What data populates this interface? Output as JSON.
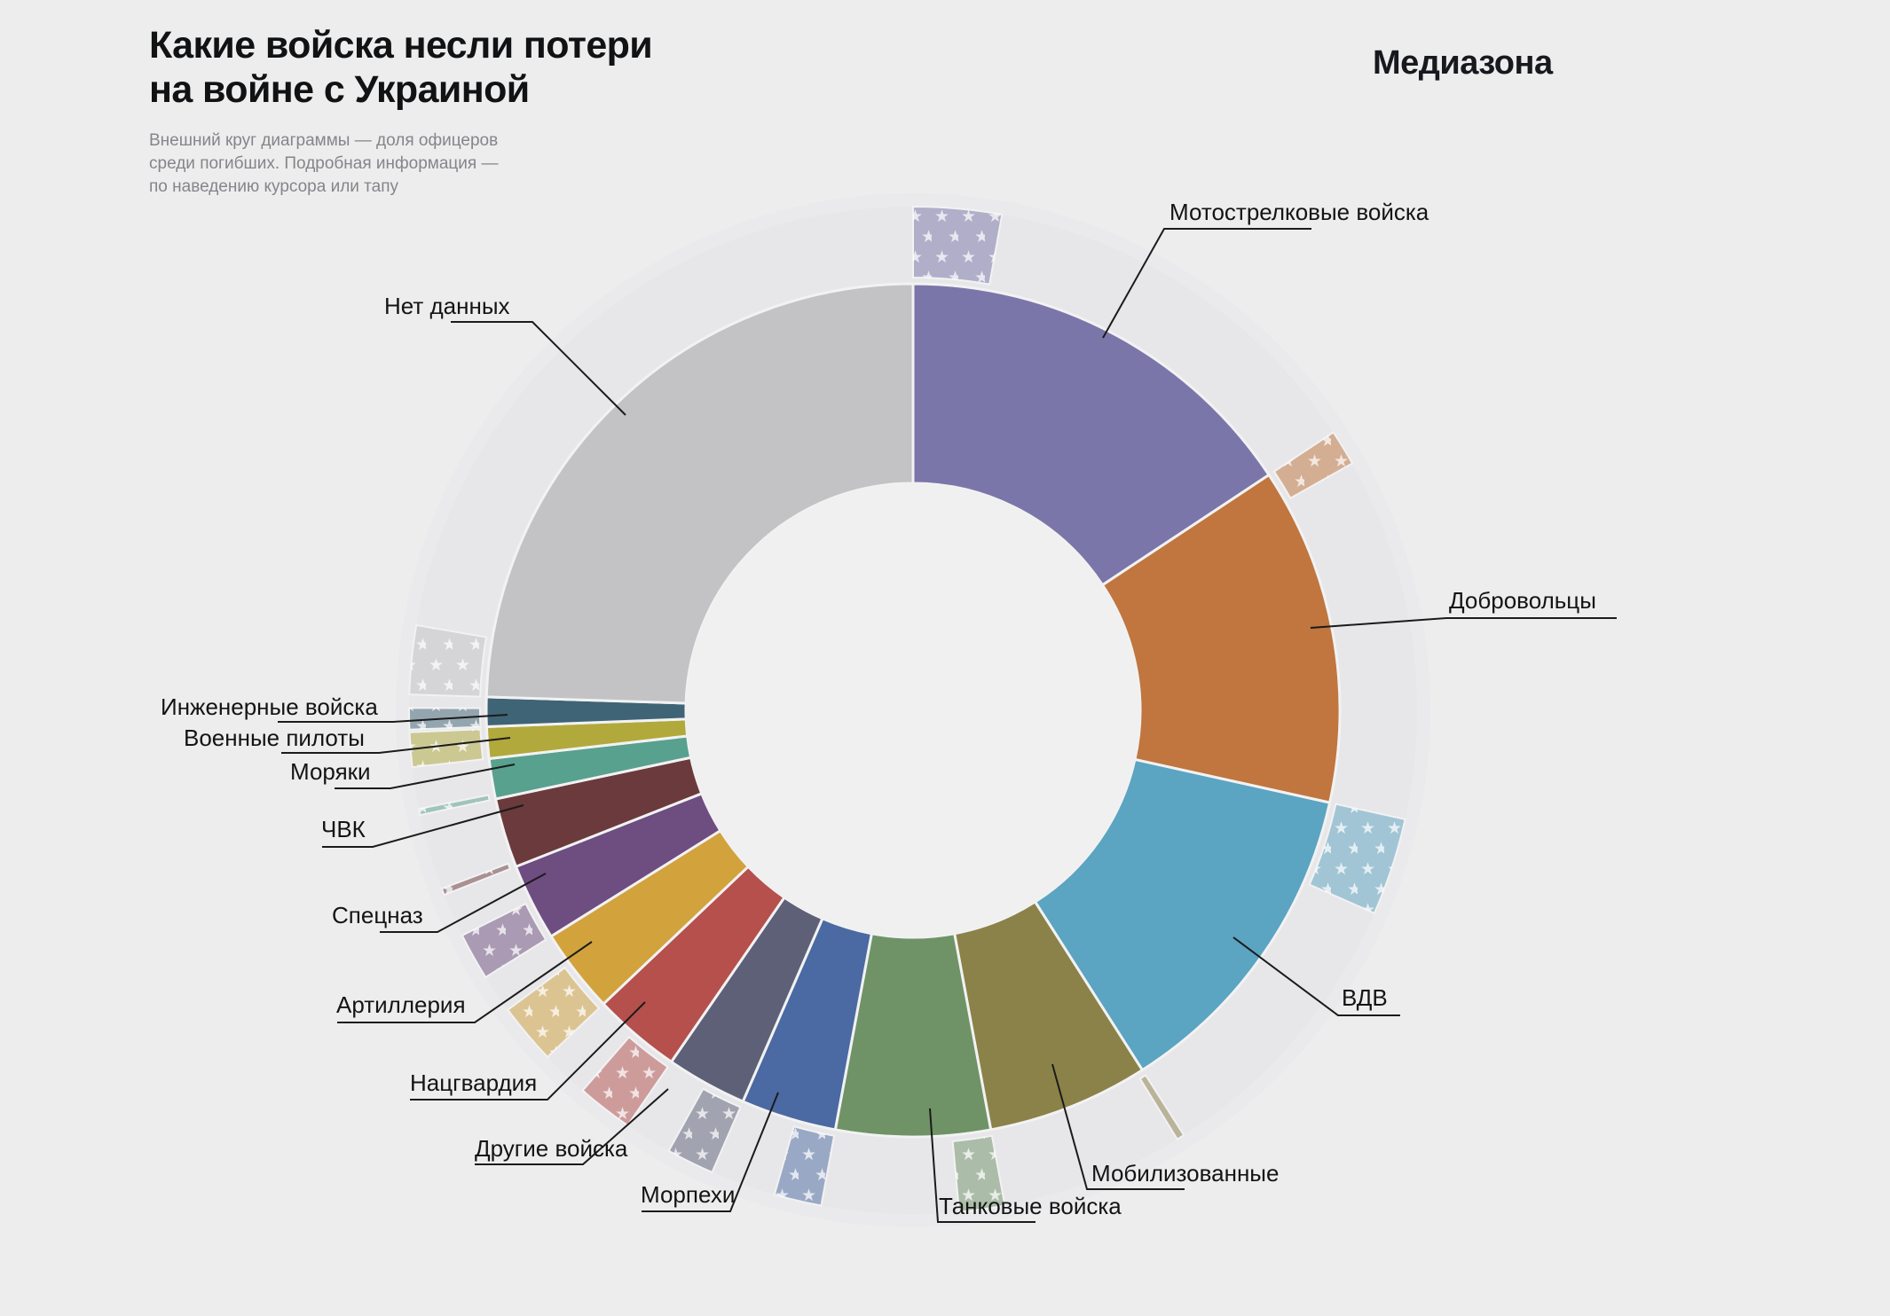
{
  "header": {
    "title_line1": "Какие войска несли потери",
    "title_line2": "на войне с Украиной",
    "subtitle_line1": "Внешний круг диаграммы — доля офицеров",
    "subtitle_line2": "среди погибших. Подробная информация —",
    "subtitle_line3": "по наведению курсора или тапу",
    "logo": "Медиазона"
  },
  "colors": {
    "background": "#ededee",
    "disc": "#eaeaec",
    "ring_track": "#e7e7e9",
    "hole": "#f0f0f1",
    "wedge_gap_stroke": "#f2f2f3",
    "leader_line": "#1b1b1b",
    "label_text": "#141414",
    "subtitle_text": "#85858a",
    "title_text": "#111214",
    "star_fill": "#ffffff"
  },
  "chart_data": {
    "type": "donut_with_outer_officer_ring",
    "title": "Какие войска несли потери на войне с Украиной",
    "note": "Внешний круг диаграммы — доля офицеров среди погибших. Подробная информация — по наведению курсора или тапу",
    "units": "доля среди погибших, % (оценка по углам сегментов)",
    "direction": "clockwise_from_top",
    "legend_position": "labels_with_leader_lines",
    "segments": [
      {
        "id": "motostrelki",
        "label": "Мотострелковые войска",
        "color": "#7b76a9",
        "start_deg": 0,
        "end_deg": 56.5,
        "share_pct": 15.7,
        "officer_share_pct": 18
      },
      {
        "id": "dobrovoltsy",
        "label": "Добровольцы",
        "color": "#c0763e",
        "start_deg": 56.5,
        "end_deg": 102.5,
        "share_pct": 12.8,
        "officer_share_pct": 9
      },
      {
        "id": "vdv",
        "label": "ВДВ",
        "color": "#5ba4c2",
        "start_deg": 102.5,
        "end_deg": 147.5,
        "share_pct": 12.5,
        "officer_share_pct": 25
      },
      {
        "id": "mobilizovannye",
        "label": "Мобилизованные",
        "color": "#8b8249",
        "start_deg": 147.5,
        "end_deg": 169.5,
        "share_pct": 6.1,
        "officer_share_pct": 4
      },
      {
        "id": "tankovye",
        "label": "Танковые войска",
        "color": "#6f9367",
        "start_deg": 169.5,
        "end_deg": 190.5,
        "share_pct": 5.8,
        "officer_share_pct": 25
      },
      {
        "id": "morpekhi",
        "label": "Морпехи",
        "color": "#4b69a2",
        "start_deg": 190.5,
        "end_deg": 203.5,
        "share_pct": 3.6,
        "officer_share_pct": 42
      },
      {
        "id": "drugie",
        "label": "Другие войска",
        "color": "#5d6077",
        "start_deg": 203.5,
        "end_deg": 214.5,
        "share_pct": 3.1,
        "officer_share_pct": 50
      },
      {
        "id": "natsgvardia",
        "label": "Нацгвардия",
        "color": "#b5504d",
        "start_deg": 214.5,
        "end_deg": 226.5,
        "share_pct": 3.3,
        "officer_share_pct": 54
      },
      {
        "id": "artilleria",
        "label": "Артиллерия",
        "color": "#d2a23c",
        "start_deg": 226.5,
        "end_deg": 238,
        "share_pct": 3.2,
        "officer_share_pct": 61
      },
      {
        "id": "spetsnaz",
        "label": "Спецназ",
        "color": "#6e4d80",
        "start_deg": 238,
        "end_deg": 248.5,
        "share_pct": 2.9,
        "officer_share_pct": 52
      },
      {
        "id": "chvk",
        "label": "ЧВК",
        "color": "#6b3a3d",
        "start_deg": 248.5,
        "end_deg": 258,
        "share_pct": 2.6,
        "officer_share_pct": 8
      },
      {
        "id": "moryaki",
        "label": "Моряки",
        "color": "#58a18e",
        "start_deg": 258,
        "end_deg": 263.5,
        "share_pct": 1.5,
        "officer_share_pct": 13
      },
      {
        "id": "pilots",
        "label": "Военные пилоты",
        "color": "#b2a93c",
        "start_deg": 263.5,
        "end_deg": 267.8,
        "share_pct": 1.2,
        "officer_share_pct": 93
      },
      {
        "id": "inzhenernye",
        "label": "Инженерные войска",
        "color": "#3f6476",
        "start_deg": 267.8,
        "end_deg": 271.8,
        "share_pct": 1.1,
        "officer_share_pct": 62
      },
      {
        "id": "net_dannykh",
        "label": "Нет данных",
        "color": "#c3c2c5",
        "start_deg": 271.8,
        "end_deg": 360,
        "share_pct": 24.5,
        "officer_share_pct": 9
      }
    ]
  }
}
